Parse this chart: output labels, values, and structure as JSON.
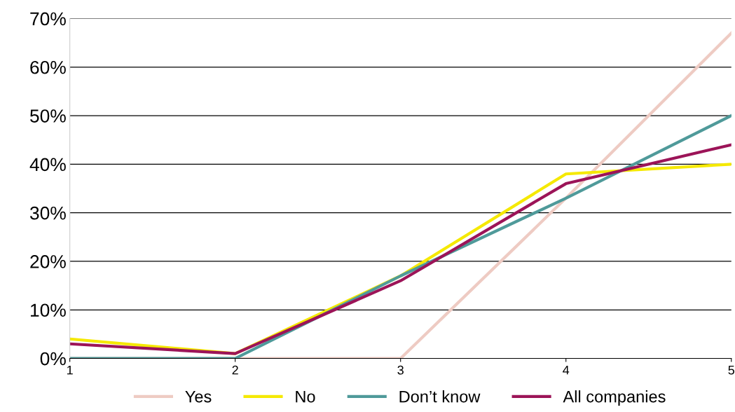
{
  "chart_data": {
    "type": "line",
    "categories": [
      "1",
      "2",
      "3",
      "4",
      "5"
    ],
    "series": [
      {
        "name": "Yes",
        "color": "#eecbc3",
        "values": [
          0,
          0,
          0,
          33,
          67
        ]
      },
      {
        "name": "No",
        "color": "#f5e900",
        "values": [
          4,
          1,
          17,
          38,
          40
        ]
      },
      {
        "name": "Don’t know",
        "color": "#4f9a9a",
        "values": [
          0,
          0,
          17,
          33,
          50
        ]
      },
      {
        "name": "All companies",
        "color": "#9c1458",
        "values": [
          3,
          1,
          16,
          36,
          44
        ]
      }
    ],
    "ylim": [
      0,
      70
    ],
    "yticks": [
      {
        "value": 0,
        "label": "0%"
      },
      {
        "value": 10,
        "label": "10%"
      },
      {
        "value": 20,
        "label": "20%"
      },
      {
        "value": 30,
        "label": "30%"
      },
      {
        "value": 40,
        "label": "40%"
      },
      {
        "value": 50,
        "label": "50%"
      },
      {
        "value": 60,
        "label": "60%"
      },
      {
        "value": 70,
        "label": "70%"
      }
    ],
    "grid": "y",
    "legend": "bottom",
    "marker": "none",
    "line_style": "solid"
  }
}
